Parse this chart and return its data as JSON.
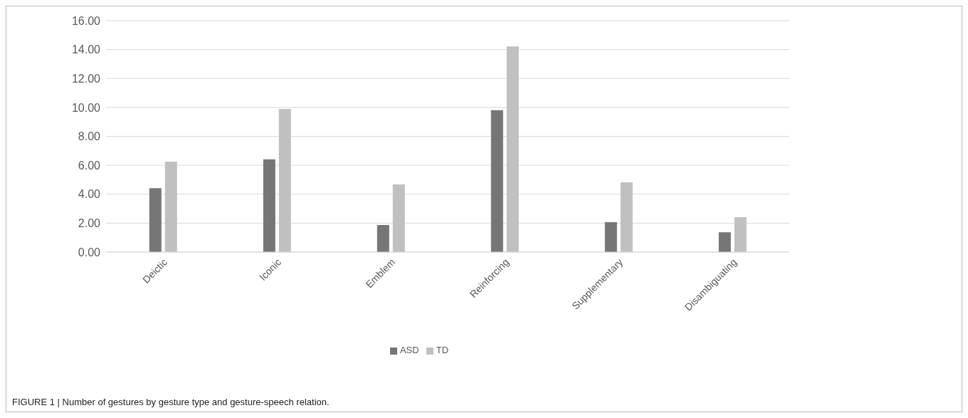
{
  "chart_data": {
    "type": "bar",
    "categories": [
      "Deictic",
      "Iconic",
      "Emblem",
      "Reinforcing",
      "Supplementary",
      "Disambiguating"
    ],
    "series": [
      {
        "name": "ASD",
        "color": "#767676",
        "values": [
          4.42,
          6.41,
          1.87,
          9.81,
          2.07,
          1.37
        ]
      },
      {
        "name": "TD",
        "color": "#c0c0c0",
        "values": [
          6.25,
          9.89,
          4.68,
          14.21,
          4.82,
          2.41
        ]
      }
    ],
    "ylim": [
      0,
      16
    ],
    "yticks": [
      {
        "value": 0,
        "label": "0.00"
      },
      {
        "value": 2,
        "label": "2.00"
      },
      {
        "value": 4,
        "label": "4.00"
      },
      {
        "value": 6,
        "label": "6.00"
      },
      {
        "value": 8,
        "label": "8.00"
      },
      {
        "value": 10,
        "label": "10.00"
      },
      {
        "value": 12,
        "label": "12.00"
      },
      {
        "value": 14,
        "label": "14.00"
      },
      {
        "value": 16,
        "label": "16.00"
      }
    ],
    "grid": "y",
    "legend": "bottom",
    "annotations": [
      "FIGURE 1 | Number of gestures by gesture type and gesture-speech relation."
    ]
  }
}
